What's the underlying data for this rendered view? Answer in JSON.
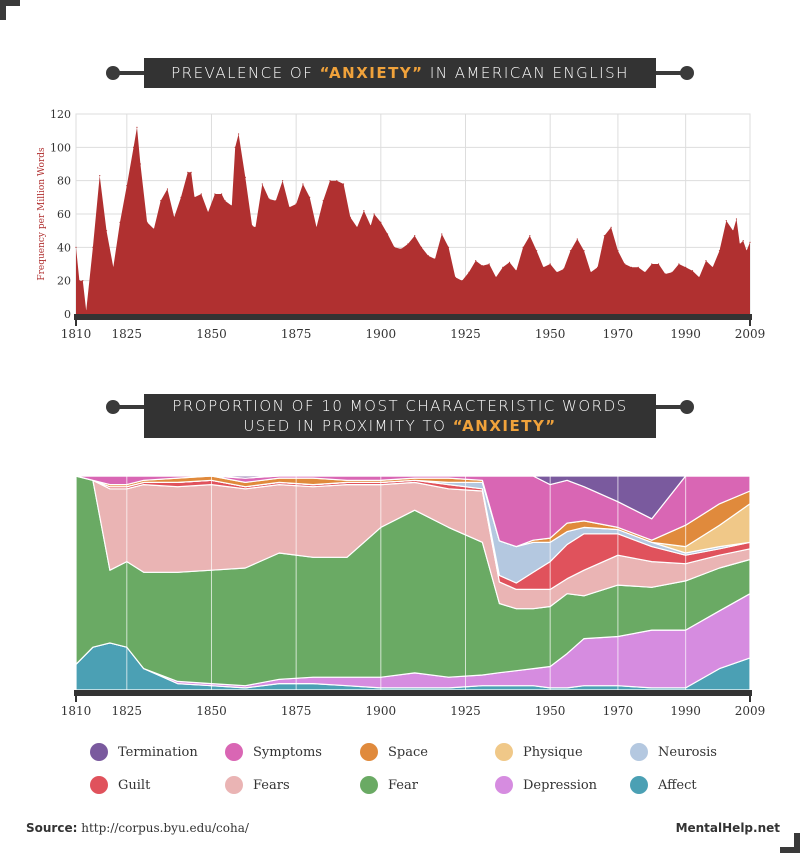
{
  "title1": {
    "pre": "PREVALENCE OF ",
    "hl": "“ANXIETY”",
    "post": " IN AMERICAN ENGLISH"
  },
  "title2": {
    "line1": "PROPORTION OF 10 MOST CHARACTERISTIC WORDS",
    "pre2": "USED IN PROXIMITY TO ",
    "hl": "“ANXIETY”"
  },
  "colors": {
    "accent": "#f0a23b",
    "dark": "#333333",
    "area": "#b03030"
  },
  "chart_data": [
    {
      "type": "area",
      "title": "Prevalence of “anxiety” in American English",
      "ylabel": "Frequency per Million Words",
      "xlabel": "",
      "ylim": [
        0,
        120
      ],
      "yticks": [
        0,
        20,
        40,
        60,
        80,
        100,
        120
      ],
      "xticks": [
        1810,
        1825,
        1850,
        1875,
        1900,
        1925,
        1950,
        1970,
        1990,
        2009
      ],
      "xlim": [
        1810,
        2009
      ],
      "x": [
        1810,
        1811,
        1812,
        1813,
        1815,
        1817,
        1819,
        1821,
        1823,
        1825,
        1827,
        1828,
        1829,
        1831,
        1833,
        1835,
        1837,
        1839,
        1841,
        1843,
        1844,
        1845,
        1847,
        1849,
        1851,
        1853,
        1854,
        1856,
        1857,
        1858,
        1860,
        1862,
        1863,
        1865,
        1867,
        1869,
        1871,
        1873,
        1875,
        1877,
        1879,
        1881,
        1883,
        1885,
        1887,
        1889,
        1891,
        1893,
        1895,
        1897,
        1898,
        1900,
        1902,
        1904,
        1906,
        1908,
        1910,
        1912,
        1914,
        1916,
        1918,
        1920,
        1922,
        1924,
        1926,
        1928,
        1930,
        1932,
        1934,
        1936,
        1938,
        1940,
        1942,
        1944,
        1946,
        1948,
        1950,
        1952,
        1954,
        1956,
        1958,
        1960,
        1962,
        1964,
        1966,
        1968,
        1970,
        1972,
        1974,
        1976,
        1978,
        1980,
        1982,
        1984,
        1986,
        1988,
        1990,
        1992,
        1994,
        1996,
        1998,
        2000,
        2002,
        2004,
        2005,
        2006,
        2007,
        2008,
        2009
      ],
      "values": [
        40,
        20,
        20,
        2,
        40,
        83,
        50,
        28,
        55,
        77,
        100,
        112,
        90,
        55,
        51,
        68,
        75,
        58,
        70,
        85,
        85,
        70,
        72,
        61,
        72,
        72,
        68,
        65,
        100,
        108,
        82,
        53,
        52,
        78,
        69,
        68,
        80,
        64,
        66,
        78,
        70,
        52,
        68,
        80,
        80,
        78,
        58,
        52,
        62,
        53,
        60,
        55,
        48,
        40,
        39,
        42,
        47,
        40,
        35,
        33,
        48,
        40,
        22,
        20,
        25,
        32,
        29,
        30,
        22,
        28,
        31,
        26,
        40,
        47,
        38,
        28,
        30,
        25,
        27,
        38,
        45,
        38,
        25,
        28,
        47,
        52,
        38,
        30,
        28,
        28,
        25,
        30,
        30,
        24,
        25,
        30,
        28,
        26,
        22,
        32,
        28,
        38,
        56,
        50,
        57,
        42,
        44,
        38,
        43
      ]
    },
    {
      "type": "area",
      "stacked": true,
      "normalized": true,
      "title": "Proportion of 10 most characteristic words used in proximity to “anxiety”",
      "xticks": [
        1810,
        1825,
        1850,
        1875,
        1900,
        1925,
        1950,
        1970,
        1990,
        2009
      ],
      "x": [
        1810,
        1815,
        1820,
        1825,
        1830,
        1840,
        1850,
        1860,
        1870,
        1880,
        1890,
        1900,
        1910,
        1920,
        1930,
        1935,
        1940,
        1945,
        1950,
        1955,
        1960,
        1970,
        1980,
        1990,
        2000,
        2009
      ],
      "series": [
        {
          "name": "Affect",
          "color": "#4ba0b4",
          "values": [
            0.12,
            0.2,
            0.22,
            0.2,
            0.1,
            0.03,
            0.02,
            0.01,
            0.03,
            0.03,
            0.02,
            0.01,
            0.01,
            0.01,
            0.02,
            0.02,
            0.02,
            0.02,
            0.01,
            0.01,
            0.02,
            0.02,
            0.01,
            0.01,
            0.1,
            0.15
          ]
        },
        {
          "name": "Depression",
          "color": "#d68ce0",
          "values": [
            0.0,
            0.0,
            0.0,
            0.0,
            0.0,
            0.01,
            0.01,
            0.01,
            0.02,
            0.03,
            0.04,
            0.05,
            0.07,
            0.05,
            0.05,
            0.06,
            0.07,
            0.08,
            0.1,
            0.16,
            0.22,
            0.23,
            0.27,
            0.27,
            0.27,
            0.3
          ]
        },
        {
          "name": "Fear",
          "color": "#6aaa64",
          "values": [
            0.88,
            0.78,
            0.34,
            0.4,
            0.45,
            0.51,
            0.53,
            0.55,
            0.59,
            0.56,
            0.56,
            0.7,
            0.76,
            0.7,
            0.62,
            0.32,
            0.29,
            0.28,
            0.28,
            0.28,
            0.2,
            0.24,
            0.2,
            0.23,
            0.2,
            0.16
          ]
        },
        {
          "name": "Fears",
          "color": "#eab4b4",
          "values": [
            0.0,
            0.0,
            0.38,
            0.34,
            0.41,
            0.4,
            0.4,
            0.37,
            0.32,
            0.33,
            0.34,
            0.2,
            0.13,
            0.18,
            0.24,
            0.1,
            0.09,
            0.09,
            0.08,
            0.07,
            0.12,
            0.14,
            0.12,
            0.08,
            0.06,
            0.05
          ]
        },
        {
          "name": "Guilt",
          "color": "#e0525c",
          "values": [
            0.0,
            0.0,
            0.01,
            0.01,
            0.01,
            0.02,
            0.02,
            0.01,
            0.01,
            0.01,
            0.01,
            0.01,
            0.01,
            0.02,
            0.01,
            0.03,
            0.03,
            0.08,
            0.13,
            0.16,
            0.17,
            0.1,
            0.07,
            0.04,
            0.03,
            0.03
          ]
        },
        {
          "name": "Neurosis",
          "color": "#b4c8e0",
          "values": [
            0.0,
            0.0,
            0.0,
            0.0,
            0.0,
            0.0,
            0.0,
            0.0,
            0.0,
            0.0,
            0.0,
            0.0,
            0.0,
            0.01,
            0.03,
            0.16,
            0.17,
            0.14,
            0.09,
            0.06,
            0.03,
            0.02,
            0.02,
            0.01,
            0.01,
            0.0
          ]
        },
        {
          "name": "Physique",
          "color": "#f0c888",
          "values": [
            0.0,
            0.0,
            0.0,
            0.0,
            0.0,
            0.0,
            0.0,
            0.0,
            0.0,
            0.0,
            0.0,
            0.0,
            0.0,
            0.0,
            0.0,
            0.0,
            0.0,
            0.0,
            0.0,
            0.0,
            0.0,
            0.0,
            0.0,
            0.03,
            0.1,
            0.18
          ]
        },
        {
          "name": "Space",
          "color": "#e08a3c",
          "values": [
            0.0,
            0.0,
            0.01,
            0.01,
            0.01,
            0.02,
            0.02,
            0.02,
            0.02,
            0.03,
            0.01,
            0.01,
            0.01,
            0.02,
            0.01,
            0.0,
            0.0,
            0.01,
            0.02,
            0.04,
            0.03,
            0.01,
            0.01,
            0.1,
            0.1,
            0.06
          ]
        },
        {
          "name": "Symptoms",
          "color": "#d966b4",
          "values": [
            0.0,
            0.02,
            0.04,
            0.04,
            0.02,
            0.01,
            0.0,
            0.02,
            0.01,
            0.01,
            0.02,
            0.02,
            0.01,
            0.01,
            0.02,
            0.3,
            0.33,
            0.3,
            0.25,
            0.2,
            0.16,
            0.12,
            0.1,
            0.23,
            0.13,
            0.07
          ]
        },
        {
          "name": "Termination",
          "color": "#7a5a9e",
          "values": [
            0.0,
            0.0,
            0.0,
            0.0,
            0.0,
            0.0,
            0.0,
            0.01,
            0.0,
            0.0,
            0.0,
            0.0,
            0.0,
            0.0,
            0.0,
            0.0,
            0.0,
            0.0,
            0.04,
            0.02,
            0.05,
            0.12,
            0.2,
            0.0,
            0.0,
            0.0
          ]
        }
      ]
    }
  ],
  "legend": [
    {
      "label": "Termination",
      "color": "#7a5a9e"
    },
    {
      "label": "Symptoms",
      "color": "#d966b4"
    },
    {
      "label": "Space",
      "color": "#e08a3c"
    },
    {
      "label": "Physique",
      "color": "#f0c888"
    },
    {
      "label": "Neurosis",
      "color": "#b4c8e0"
    },
    {
      "label": "Guilt",
      "color": "#e0525c"
    },
    {
      "label": "Fears",
      "color": "#eab4b4"
    },
    {
      "label": "Fear",
      "color": "#6aaa64"
    },
    {
      "label": "Depression",
      "color": "#d68ce0"
    },
    {
      "label": "Affect",
      "color": "#4ba0b4"
    }
  ],
  "footer": {
    "source_label": "Source:",
    "source_url": "http://corpus.byu.edu/coha/",
    "brand": "MentalHelp.net"
  }
}
